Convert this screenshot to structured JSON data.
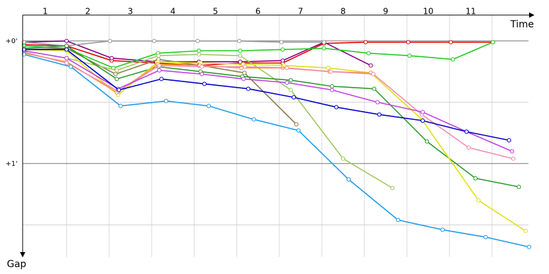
{
  "chart_data": {
    "type": "line",
    "x_label": "Time",
    "y_label": "Gap",
    "laps": [
      1,
      2,
      3,
      4,
      5,
      6,
      7,
      8,
      9,
      10,
      11
    ],
    "xlim": [
      0,
      12
    ],
    "ylim": [
      -0.2,
      1.75
    ],
    "y_inverted": true,
    "yticks": [
      {
        "value": 0,
        "label": "+0'"
      },
      {
        "value": 1,
        "label": "+1'"
      }
    ],
    "minor_ygrid": [
      0.5,
      1.5
    ],
    "grid": true,
    "series": [
      {
        "color": "#e00000",
        "x": [
          0,
          1,
          2.06,
          3.11,
          4.11,
          5.08,
          6.08,
          7.05,
          8.03,
          9.03,
          10.03,
          11.02
        ],
        "values": [
          0.03,
          0.04,
          0.16,
          0.18,
          0.2,
          0.18,
          0.18,
          0.02,
          0.01,
          0.01,
          0.01,
          0.01
        ]
      },
      {
        "color": "#800080",
        "x": [
          0,
          1,
          2.06,
          3.11,
          4.11,
          5.08,
          6.08,
          7.05,
          8.15
        ],
        "values": [
          0.01,
          0,
          0.14,
          0.17,
          0.17,
          0.17,
          0.16,
          0.01,
          0.2
        ]
      },
      {
        "color": "#999999",
        "x": [
          0,
          1,
          2.02,
          3.06,
          4.08,
          5.06,
          6.05,
          7.05
        ],
        "values": [
          0.01,
          0.04,
          0,
          0,
          0,
          0,
          0.01,
          0.01
        ]
      },
      {
        "color": "#22cc22",
        "x": [
          0,
          1,
          2.1,
          3.15,
          4.11,
          5.08,
          6.08,
          7.05,
          8.1,
          9.06,
          10.08,
          11.02
        ],
        "values": [
          0.04,
          0.06,
          0.22,
          0.1,
          0.08,
          0.08,
          0.07,
          0.06,
          0.1,
          0.12,
          0.15,
          0.01
        ]
      },
      {
        "color": "#8b7d4a",
        "x": [
          0,
          1,
          2.15,
          3.16,
          4.15,
          5.18,
          6.4
        ],
        "values": [
          0.07,
          0.06,
          0.27,
          0.15,
          0.2,
          0.26,
          0.68
        ]
      },
      {
        "color": "#a0c860",
        "x": [
          0,
          1,
          2.18,
          3.16,
          4.11,
          5.08,
          6.27,
          7.5,
          8.66
        ],
        "values": [
          0.08,
          0.14,
          0.24,
          0.12,
          0.11,
          0.12,
          0.4,
          0.96,
          1.2
        ]
      },
      {
        "color": "#2a9a2a",
        "x": [
          0,
          1,
          2.18,
          3.16,
          4.15,
          5.13,
          6.27,
          7.24,
          8.23,
          9.47,
          10.61,
          11.63
        ],
        "values": [
          0.06,
          0.04,
          0.31,
          0.21,
          0.25,
          0.29,
          0.32,
          0.37,
          0.39,
          0.82,
          1.12,
          1.19
        ]
      },
      {
        "color": "#e0e010",
        "x": [
          0,
          1,
          2.21,
          3.15,
          4.15,
          5.15,
          6.11,
          7.15,
          8.15,
          9.35,
          10.68,
          11.79
        ],
        "values": [
          0.07,
          0.08,
          0.44,
          0.17,
          0.18,
          0.19,
          0.2,
          0.22,
          0.26,
          0.64,
          1.3,
          1.55
        ]
      },
      {
        "color": "#f0a030",
        "x": [
          0,
          1,
          2.18,
          3.15,
          4.13,
          5.11,
          6.08,
          7.18,
          8.15
        ],
        "values": [
          0.1,
          0.17,
          0.42,
          0.19,
          0.2,
          0.22,
          0.22,
          0.25,
          0.26
        ]
      },
      {
        "color": "#f08cb0",
        "x": [
          0,
          1,
          2.21,
          3.18,
          4.18,
          5.19,
          6.18,
          7.21,
          8.21,
          9.35,
          10.45,
          11.5
        ],
        "values": [
          0.09,
          0.18,
          0.41,
          0.2,
          0.21,
          0.21,
          0.22,
          0.25,
          0.27,
          0.6,
          0.87,
          0.96
        ]
      },
      {
        "color": "#c040e0",
        "x": [
          0,
          1,
          2.21,
          3.18,
          4.18,
          5.16,
          6.18,
          7.24,
          8.31,
          9.37,
          10.4,
          11.47
        ],
        "values": [
          0.08,
          0.14,
          0.39,
          0.24,
          0.27,
          0.31,
          0.34,
          0.4,
          0.5,
          0.58,
          0.74,
          0.9
        ]
      },
      {
        "color": "#0000cc",
        "x": [
          0,
          1,
          2.23,
          3.23,
          4.24,
          5.27,
          6.34,
          7.34,
          8.35,
          9.37,
          10.4,
          11.4
        ],
        "values": [
          0.07,
          0.07,
          0.4,
          0.31,
          0.35,
          0.39,
          0.46,
          0.54,
          0.6,
          0.65,
          0.74,
          0.81
        ]
      },
      {
        "color": "#1e9be8",
        "x": [
          0,
          1.1,
          2.27,
          3.34,
          4.34,
          5.4,
          6.45,
          7.63,
          8.79,
          9.84,
          10.85,
          11.87
        ],
        "values": [
          0.11,
          0.21,
          0.53,
          0.49,
          0.53,
          0.64,
          0.73,
          1.13,
          1.46,
          1.54,
          1.6,
          1.68
        ]
      }
    ]
  }
}
